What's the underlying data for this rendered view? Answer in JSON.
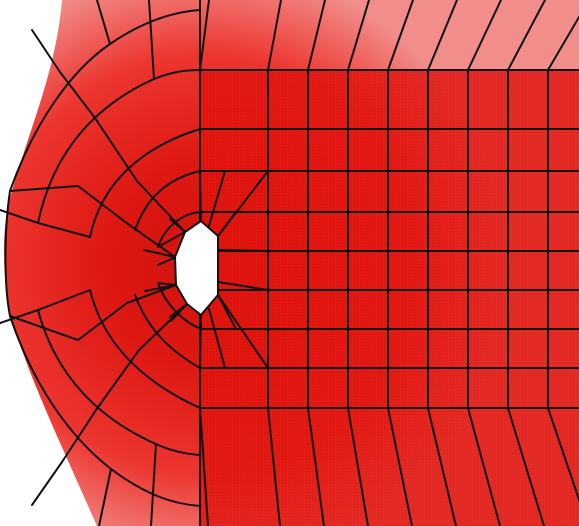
{
  "figure": {
    "description_visible_text": "",
    "colors": {
      "background": "#ffffff",
      "mesh_fill": "#e8150f",
      "mesh_fill_dense": "#c90d08",
      "fine_grid_line": "#b10b07",
      "block_edge": "#111111",
      "obstacle": "#ffffff"
    }
  }
}
